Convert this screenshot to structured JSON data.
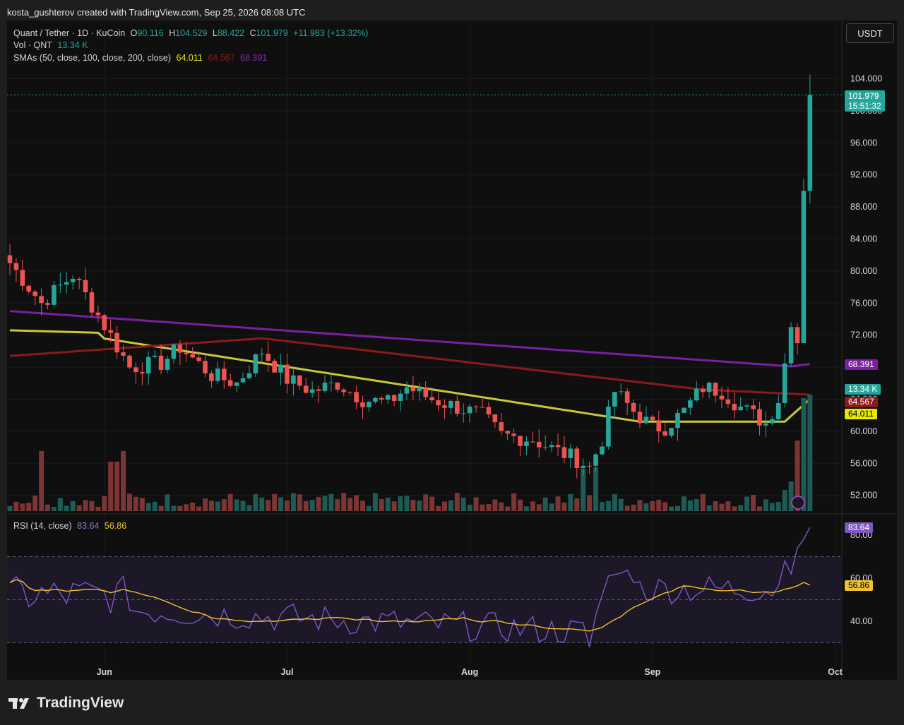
{
  "header": {
    "attribution": "kosta_gushterov created with TradingView.com, Sep 25, 2026 08:08 UTC"
  },
  "legend": {
    "symbol": "Quant / Tether · 1D · KuCoin",
    "o_label": "O",
    "o_value": "90.116",
    "h_label": "H",
    "h_value": "104.529",
    "l_label": "L",
    "l_value": "88.422",
    "c_label": "C",
    "c_value": "101.979",
    "change": "+11.983 (+13.32%)",
    "vol_label": "Vol · QNT",
    "vol_value": "13.34 K",
    "sma_label": "SMAs (50, close, 100, close, 200, close)",
    "sma50": "64.011",
    "sma100": "64.567",
    "sma200": "68.391",
    "rsi_label": "RSI (14, close)",
    "rsi_value": "83.64",
    "rsi_ma_value": "56.86"
  },
  "currency_button": "USDT",
  "badges": {
    "price": "101.979",
    "countdown": "15:51:32",
    "sma200": "68.391",
    "volume": "13.34 K",
    "sma100": "64.567",
    "sma50": "64.011",
    "rsi": "83.64",
    "rsi_ma": "56.86"
  },
  "colors": {
    "up": "#26a69a",
    "down": "#ef5350",
    "sma50": "#c8c83a",
    "sma100": "#8b1a1a",
    "sma200": "#7b1fa2",
    "rsi": "#7e57c2",
    "rsi_ma": "#f0c030"
  },
  "brand": {
    "logo_text": "TradingView"
  },
  "chart_data": {
    "type": "candlestick",
    "price_axis": {
      "ticks": [
        "104.000",
        "100.000",
        "96.000",
        "92.000",
        "88.000",
        "84.000",
        "80.000",
        "76.000",
        "72.000",
        "68.000",
        "64.000",
        "60.000",
        "56.000",
        "52.000"
      ]
    },
    "rsi_axis": {
      "ticks": [
        "80.00",
        "60.00",
        "40.00"
      ],
      "bands": [
        70,
        50,
        30
      ]
    },
    "time_axis": {
      "ticks": [
        "Jun",
        "Jul",
        "Aug",
        "Sep",
        "Oct"
      ]
    },
    "ohlc_points": [
      {
        "t": 0,
        "c": 81.0
      },
      {
        "t": 5,
        "c": 76.0
      },
      {
        "t": 10,
        "c": 79.5
      },
      {
        "t": 14,
        "c": 74.5
      },
      {
        "t": 19,
        "c": 68.0
      },
      {
        "t": 24,
        "c": 68.5
      },
      {
        "t": 27,
        "c": 70.5
      },
      {
        "t": 32,
        "c": 67.0
      },
      {
        "t": 36,
        "c": 66.0
      },
      {
        "t": 40,
        "c": 70.0
      },
      {
        "t": 44,
        "c": 66.5
      },
      {
        "t": 48,
        "c": 65.0
      },
      {
        "t": 52,
        "c": 66.0
      },
      {
        "t": 56,
        "c": 64.0
      },
      {
        "t": 60,
        "c": 63.5
      },
      {
        "t": 63,
        "c": 65.5
      },
      {
        "t": 67,
        "c": 64.0
      },
      {
        "t": 71,
        "c": 63.0
      },
      {
        "t": 75,
        "c": 62.0
      },
      {
        "t": 78,
        "c": 59.5
      },
      {
        "t": 83,
        "c": 59.0
      },
      {
        "t": 87,
        "c": 57.5
      },
      {
        "t": 90,
        "c": 56.5
      },
      {
        "t": 92,
        "c": 55.5
      },
      {
        "t": 94,
        "c": 59.0
      },
      {
        "t": 96,
        "c": 65.0
      },
      {
        "t": 99,
        "c": 62.5
      },
      {
        "t": 102,
        "c": 60.5
      },
      {
        "t": 104,
        "c": 60.5
      },
      {
        "t": 107,
        "c": 62.5
      },
      {
        "t": 110,
        "c": 65.5
      },
      {
        "t": 113,
        "c": 65.0
      },
      {
        "t": 116,
        "c": 63.0
      },
      {
        "t": 118,
        "c": 62.0
      },
      {
        "t": 120,
        "c": 61.0
      },
      {
        "t": 122,
        "c": 64.0
      },
      {
        "t": 124,
        "c": 73.0
      },
      {
        "t": 125,
        "c": 71.0
      },
      {
        "t": 126,
        "c": 90.0
      },
      {
        "t": 127,
        "c": 101.979
      }
    ],
    "high": 104.529,
    "low": 88.422,
    "sma50_end": 64.011,
    "sma100_end": 64.567,
    "sma200_end": 68.391,
    "rsi_end": 83.64,
    "rsi_ma_end": 56.86
  }
}
